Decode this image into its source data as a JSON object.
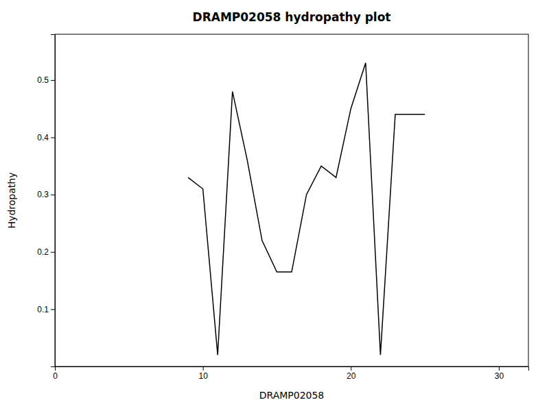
{
  "chart_data": {
    "type": "line",
    "title": "DRAMP02058 hydropathy plot",
    "xlabel": "DRAMP02058",
    "ylabel": "Hydropathy",
    "x": [
      9,
      10,
      11,
      12,
      13,
      14,
      15,
      16,
      17,
      18,
      19,
      20,
      21,
      22,
      23,
      24,
      25
    ],
    "values": [
      0.33,
      0.31,
      0.02,
      0.48,
      0.36,
      0.22,
      0.165,
      0.165,
      0.3,
      0.35,
      0.33,
      0.45,
      0.53,
      0.02,
      0.44,
      0.44,
      0.44
    ],
    "color": "#000000",
    "xlim": [
      0,
      32
    ],
    "ylim": [
      0.0,
      0.58
    ],
    "xticks": [
      0,
      10,
      20,
      30
    ],
    "yticks": [
      0.1,
      0.2,
      0.3,
      0.4,
      0.5
    ],
    "grid": false
  }
}
